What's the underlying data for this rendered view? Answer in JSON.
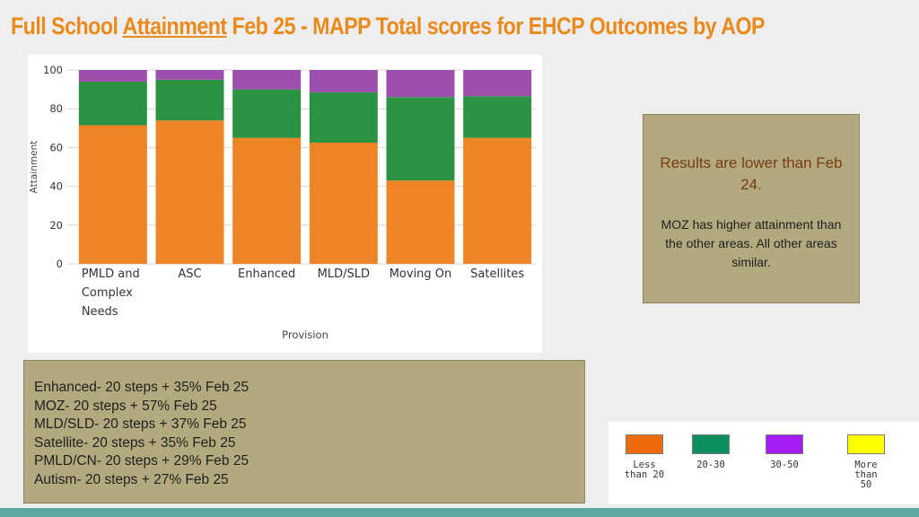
{
  "title": {
    "part1": "Full School ",
    "part2": "Attainment",
    "part3": " Feb 25 - MAPP Total scores for EHCP Outcomes by AOP"
  },
  "chart_data": {
    "type": "bar",
    "stacked": true,
    "xlabel": "Provision",
    "ylabel": "Attainment",
    "ylim": [
      0,
      100
    ],
    "yticks": [
      0,
      20,
      40,
      60,
      80,
      100
    ],
    "grid": true,
    "categories": [
      [
        "PMLD and",
        "Complex",
        "Needs"
      ],
      [
        "ASC"
      ],
      [
        "Enhanced"
      ],
      [
        "MLD/SLD"
      ],
      [
        "Moving On"
      ],
      [
        "Satellites"
      ]
    ],
    "series": [
      {
        "color": "#ee8427",
        "values": [
          71.5,
          74,
          65,
          62.5,
          43,
          65
        ]
      },
      {
        "color": "#2c9342",
        "values": [
          22.5,
          21,
          25,
          26,
          43,
          21.5
        ]
      },
      {
        "color": "#9c4fad",
        "values": [
          6,
          5,
          10,
          11.5,
          14,
          13.5
        ]
      }
    ]
  },
  "notes": {
    "line1": "Results are lower than Feb 24.",
    "line2": "MOZ has higher attainment than the other areas. All other areas similar."
  },
  "steps": [
    "Enhanced- 20 steps + 35% Feb 25",
    "MOZ- 20 steps + 57% Feb 25",
    "MLD/SLD- 20 steps + 37% Feb 25",
    "Satellite- 20 steps + 35% Feb 25",
    "PMLD/CN- 20 steps + 29% Feb 25",
    "Autism- 20 steps + 27% Feb 25"
  ],
  "key": [
    {
      "label": "Less than 20",
      "color": "#ee6b0c"
    },
    {
      "label": "20-30",
      "color": "#0d8f5e"
    },
    {
      "label": "30-50",
      "color": "#a21cf6"
    },
    {
      "label": "More than 50",
      "color": "#ffff00"
    }
  ]
}
